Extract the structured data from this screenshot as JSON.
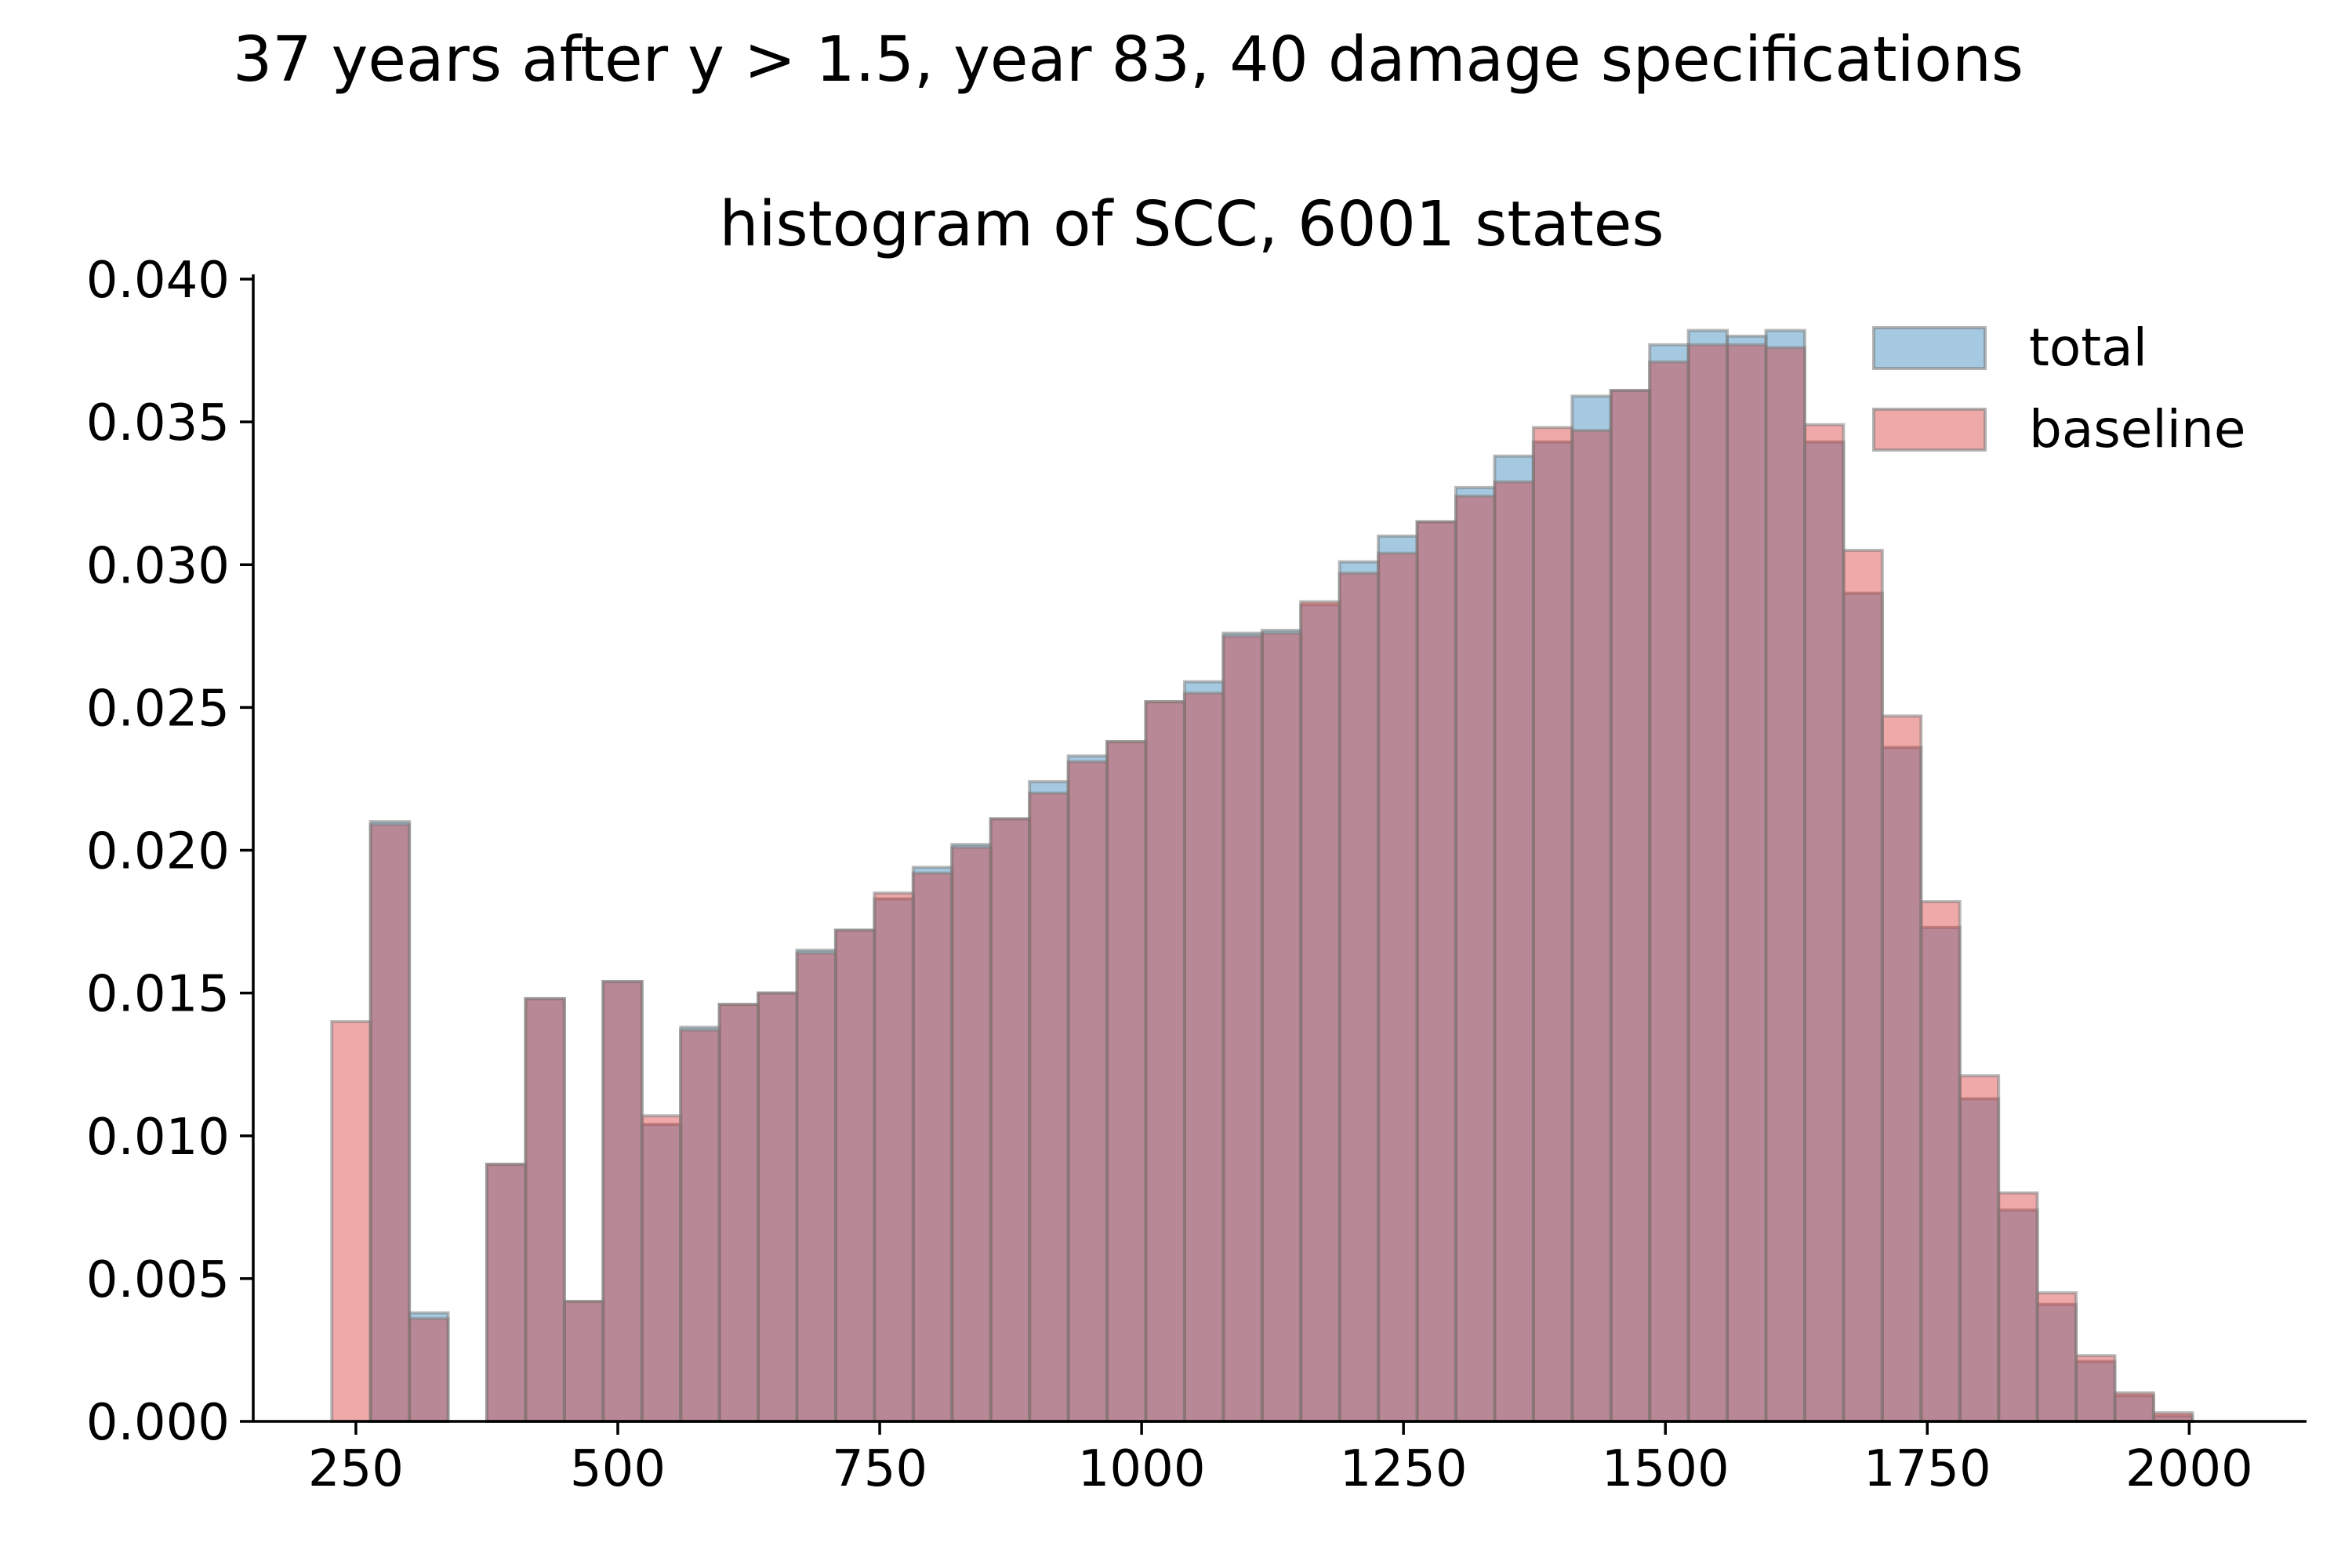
{
  "chart_data": {
    "type": "bar",
    "suptitle": "37 years after y > 1.5, year 83, 40 damage specifications",
    "title": "histogram of SCC, 6001 states",
    "xlabel": "",
    "ylabel": "",
    "xlim": [
      152,
      2112
    ],
    "ylim": [
      0,
      0.04
    ],
    "xticks": [
      250,
      500,
      750,
      1000,
      1250,
      1500,
      1750,
      2000
    ],
    "xtick_labels": [
      "250",
      "500",
      "750",
      "1000",
      "1250",
      "1500",
      "1750",
      "2000"
    ],
    "yticks": [
      0,
      0.005,
      0.01,
      0.015,
      0.02,
      0.025,
      0.03,
      0.035,
      0.04
    ],
    "ytick_labels": [
      "0.000",
      "0.005",
      "0.010",
      "0.015",
      "0.020",
      "0.025",
      "0.030",
      "0.035",
      "0.040"
    ],
    "grid": false,
    "legend_position": "top-right",
    "colors": {
      "total": "#1f77b4",
      "baseline": "#d62728",
      "overlap": "#a8808e"
    },
    "series": [
      {
        "name": "total",
        "bins": [
          [
            264,
            301,
            0.021
          ],
          [
            301,
            338,
            0.0038
          ],
          [
            375,
            412,
            0.009
          ],
          [
            412,
            449,
            0.0148
          ],
          [
            449,
            486,
            0.0042
          ],
          [
            486,
            523,
            0.0154
          ],
          [
            523,
            560,
            0.0104
          ],
          [
            560,
            597,
            0.0138
          ],
          [
            597,
            634,
            0.0146
          ],
          [
            634,
            671,
            0.015
          ],
          [
            671,
            708,
            0.0165
          ],
          [
            708,
            745,
            0.0172
          ],
          [
            745,
            782,
            0.0183
          ],
          [
            782,
            819,
            0.0194
          ],
          [
            819,
            856,
            0.0202
          ],
          [
            856,
            893,
            0.0211
          ],
          [
            893,
            930,
            0.0224
          ],
          [
            930,
            967,
            0.0233
          ],
          [
            967,
            1004,
            0.0238
          ],
          [
            1004,
            1041,
            0.0252
          ],
          [
            1041,
            1078,
            0.0259
          ],
          [
            1078,
            1115,
            0.0276
          ],
          [
            1115,
            1152,
            0.0277
          ],
          [
            1152,
            1189,
            0.0286
          ],
          [
            1189,
            1226,
            0.0301
          ],
          [
            1226,
            1263,
            0.031
          ],
          [
            1263,
            1300,
            0.0315
          ],
          [
            1300,
            1337,
            0.0327
          ],
          [
            1337,
            1374,
            0.0338
          ],
          [
            1374,
            1411,
            0.0343
          ],
          [
            1411,
            1448,
            0.0359
          ],
          [
            1448,
            1485,
            0.0361
          ],
          [
            1485,
            1522,
            0.0377
          ],
          [
            1522,
            1559,
            0.0382
          ],
          [
            1559,
            1596,
            0.038
          ],
          [
            1596,
            1633,
            0.0382
          ],
          [
            1633,
            1670,
            0.0343
          ],
          [
            1670,
            1707,
            0.029
          ],
          [
            1707,
            1744,
            0.0236
          ],
          [
            1744,
            1781,
            0.0173
          ],
          [
            1781,
            1818,
            0.0113
          ],
          [
            1818,
            1855,
            0.0074
          ],
          [
            1855,
            1892,
            0.0041
          ],
          [
            1892,
            1929,
            0.0021
          ],
          [
            1929,
            1966,
            0.0009
          ],
          [
            1966,
            2003,
            0.0002
          ]
        ]
      },
      {
        "name": "baseline",
        "bins": [
          [
            227,
            264,
            0.014
          ],
          [
            264,
            301,
            0.0209
          ],
          [
            301,
            338,
            0.0036
          ],
          [
            375,
            412,
            0.009
          ],
          [
            412,
            449,
            0.0148
          ],
          [
            449,
            486,
            0.0042
          ],
          [
            486,
            523,
            0.0154
          ],
          [
            523,
            560,
            0.0107
          ],
          [
            560,
            597,
            0.0137
          ],
          [
            597,
            634,
            0.0146
          ],
          [
            634,
            671,
            0.015
          ],
          [
            671,
            708,
            0.0164
          ],
          [
            708,
            745,
            0.0172
          ],
          [
            745,
            782,
            0.0185
          ],
          [
            782,
            819,
            0.0192
          ],
          [
            819,
            856,
            0.0201
          ],
          [
            856,
            893,
            0.0211
          ],
          [
            893,
            930,
            0.022
          ],
          [
            930,
            967,
            0.0231
          ],
          [
            967,
            1004,
            0.0238
          ],
          [
            1004,
            1041,
            0.0252
          ],
          [
            1041,
            1078,
            0.0255
          ],
          [
            1078,
            1115,
            0.0275
          ],
          [
            1115,
            1152,
            0.0276
          ],
          [
            1152,
            1189,
            0.0287
          ],
          [
            1189,
            1226,
            0.0297
          ],
          [
            1226,
            1263,
            0.0304
          ],
          [
            1263,
            1300,
            0.0315
          ],
          [
            1300,
            1337,
            0.0324
          ],
          [
            1337,
            1374,
            0.0329
          ],
          [
            1374,
            1411,
            0.0348
          ],
          [
            1411,
            1448,
            0.0347
          ],
          [
            1448,
            1485,
            0.0361
          ],
          [
            1485,
            1522,
            0.0371
          ],
          [
            1522,
            1559,
            0.0377
          ],
          [
            1559,
            1596,
            0.0377
          ],
          [
            1596,
            1633,
            0.0376
          ],
          [
            1633,
            1670,
            0.0349
          ],
          [
            1670,
            1707,
            0.0305
          ],
          [
            1707,
            1744,
            0.0247
          ],
          [
            1744,
            1781,
            0.0182
          ],
          [
            1781,
            1818,
            0.0121
          ],
          [
            1818,
            1855,
            0.008
          ],
          [
            1855,
            1892,
            0.0045
          ],
          [
            1892,
            1929,
            0.0023
          ],
          [
            1929,
            1966,
            0.001
          ],
          [
            1966,
            2003,
            0.0003
          ]
        ]
      }
    ]
  }
}
